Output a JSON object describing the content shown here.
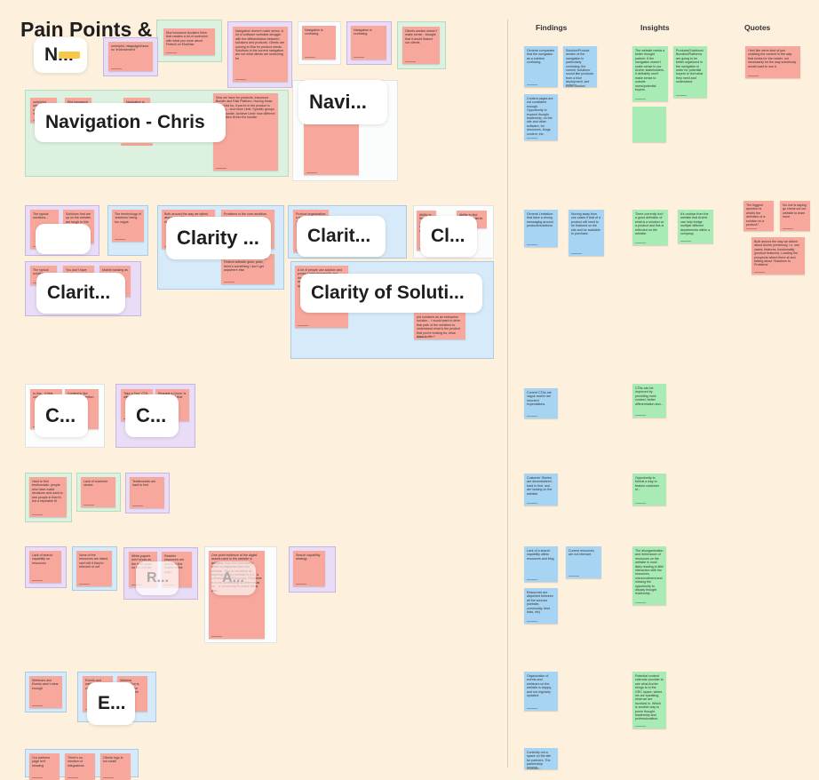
{
  "board": {
    "title": "Pain Points & Needs",
    "columns": [
      "Findings",
      "Insights",
      "Quotes"
    ]
  },
  "cluster_labels": {
    "top_n": "N...",
    "navigation_chris": "Navigation - Chris",
    "navi": "Navi...",
    "clarity_1": "Clarity ...",
    "clarity_2": "Clarit...",
    "clarity_3": "Cl...",
    "clarity_4": "Clarit...",
    "clarity_of_solutions": "Clarity of Soluti...",
    "c_1": "C...",
    "c_2": "C...",
    "r": "R...",
    "a": "A...",
    "e": "E..."
  },
  "notes": {
    "nav_main": "Navigation doesn't make sense. A lot of software websites struggle with the differentiation between solutions and products. Clients are coming to Eka for product needs. Solutions in the current navigation are not what clients are searching for",
    "nav_confusing_1": "Navigation is confusing",
    "nav_confusing_2": "Navigation is confusing",
    "nav_clients": "Clients section doesn't make sense - thought that it would feature our clients",
    "nav_top_left": "unhelpful, misgudged/ama no 'endorsement'",
    "nav_eka": "Eka Insurance Acclaim! think that creates a lot of confusion with what you more about Fintech on Eka/Nav",
    "nav_list": "1. Academy 2. Events 3. Community 4. Solutions 5. Blog 6. Demos 7. Self guided experience 8. Recorded webinars",
    "nav_pain": "Now we have for products: Insurance Bundle and Risk Platform. Having those useful list for, if you're in the product is helping... and more Limit: Specific groups of the bundle. Achieve Limit: how different capabilities fit into the bundle",
    "clarity_fed": "Both around the way we talked about what Eka could be, the right features of a good fit",
    "clarity_problem": "Problems in the core workflow",
    "clarity_works": "We don't use this, we works at Fintech website goes, yeah, there's something I don't get anywhere else",
    "clarity_terminology": "The terminology of 'solutions' being too vague",
    "clarity_features": "Solutions that are up on the website are tough to hits Insurance category",
    "clarity_product": "Product organization: a bit confusing 'Insurance' 'Risk' 'Fintech'",
    "clarity_ability": "Ability to find 'products' clients need",
    "clarity_solutions_note": "A lot of people use solution and product interchangeably and don't understand the difference and get confused about those questions",
    "clarity_enterprise": "put solutions as an enterprise solution... I would want to drive that path of the solutions to understand what is the product that you're looking for, what does it offer?",
    "typical": "The typical solutions...",
    "you_dont": "You don't have clarity on what",
    "mobile": "Mobile banking as a customer",
    "c_left_1": "Is this... it lists content",
    "c_left_2": "Content is like there's no mention",
    "c_right_1": "Take a Tour' CTA with content",
    "c_right_2": "Request a Demo' is the only CTA that people...",
    "hard_find": "Hard to find testimonials: people who have made decisions and want to see people in there's but a reputable fit",
    "lack_stories": "Lack of customer stories",
    "testimonials": "Testimonials are hard to find",
    "lack_search": "Lack of search capability on resources",
    "none_resources": "None of the resources are dated, can't tell if they're relevant or not",
    "white_papers": "White papers don't show on the main page on the website",
    "reseller": "Reseller resources are placed in the middle of the page",
    "r_note": "Resources difficult to find",
    "one_point": "One point evidence of the digital assets used in the website is available from the community, which is disjointed from the website. This is not where an aspiring group's website is (i.e., a community isn't in a box). Everyone is in the community, so there must be... a community is where ideas and...",
    "search_strategy": "Search capability strategy",
    "webinars": "Webinars and Events aren't clear enough",
    "events": "Events and webinars are not clear",
    "webinar_reg": "Webinar registration is buried at the bottom of the page",
    "bottom_1": "Our partners page isn't showing",
    "bottom_2": "There's no mention of integrations",
    "bottom_3": "Clients logo is too small"
  },
  "findings": {
    "f1": "General companies that the navigation as a solution confusing.",
    "f2": "Solution/Product section of the navigation in particularly confusing: the current 'solutions' sound like products from a blue deployment, see bullet product pages...",
    "f3": "Content pages are not consistent enough. Opportunity to expand thought leadership, on the site and other software, for resources, blogs, content, etc.",
    "f4": "General Limitation: that have a strong messaging around products/solutions",
    "f5": "Moving away from use cases if that of a product will need to be featured on the site and be available to purchase.",
    "f6": "Current CTAs are vague and/or are incorrect expectations.",
    "f7": "Customer Stories are decentralized, hard to find, and are lacking on the website.",
    "f8": "Lack of a search capability within resources and blog",
    "f9": "Current resources are not relevant.",
    "f10": "Resources are disjointed between all the sources (website, community, third links, etc)",
    "f11": "Organization of events and webinars on the website is sloppy, and not regularly updated.",
    "f12": "Currently not a space on the site for partners. The partnership program..."
  },
  "insights": {
    "i1": "The website needs a better thought partner. If the navigation doesn't make sense to our Archer stakeholders, it definitely won't make sense to outside users/potential buyers.",
    "i2": "Products/Solutions/ Bundles/Platforms are going to be better organized in the navigation in order for potential buyers to find what they need and understand.",
    "i3": "There currently isn't a good definition of what is a solution vs a product and this is reflected on the website.",
    "i4": "It's unclear from the website that Archer can help bridge multiple different departments within a company.",
    "i5": "CTAs can be improved by providing more context, better differentiation and...",
    "i6": "Opportunity to format a way to feature customer st...",
    "i7": "The disorganization and irrelevance of resources on the website is most likely leading to little interaction with the resources, misrecruitment and missing the opportunity to display thought leadership.",
    "i8": "Potential content calendar provider to see what Archer brings to in the GRC space, where we are speaking, what we are involved in. Which is another way to prove thought leadership and professionalism."
  },
  "quotes": {
    "q1": "I feel like we're kind of just clubbing the content in the way that works for the reader, not necessarily for the way somebody would want to use it.",
    "q2": "The biggest question is what's the definition of a solution vs a product?",
    "q3": "No one is saying go check out our website to learn more",
    "q4": "Built around the way we talked about Archer previously, i.e. use cases, features, functionality (product features). Leading the prospects where there at and talking about 'Solutions to Problems'"
  }
}
